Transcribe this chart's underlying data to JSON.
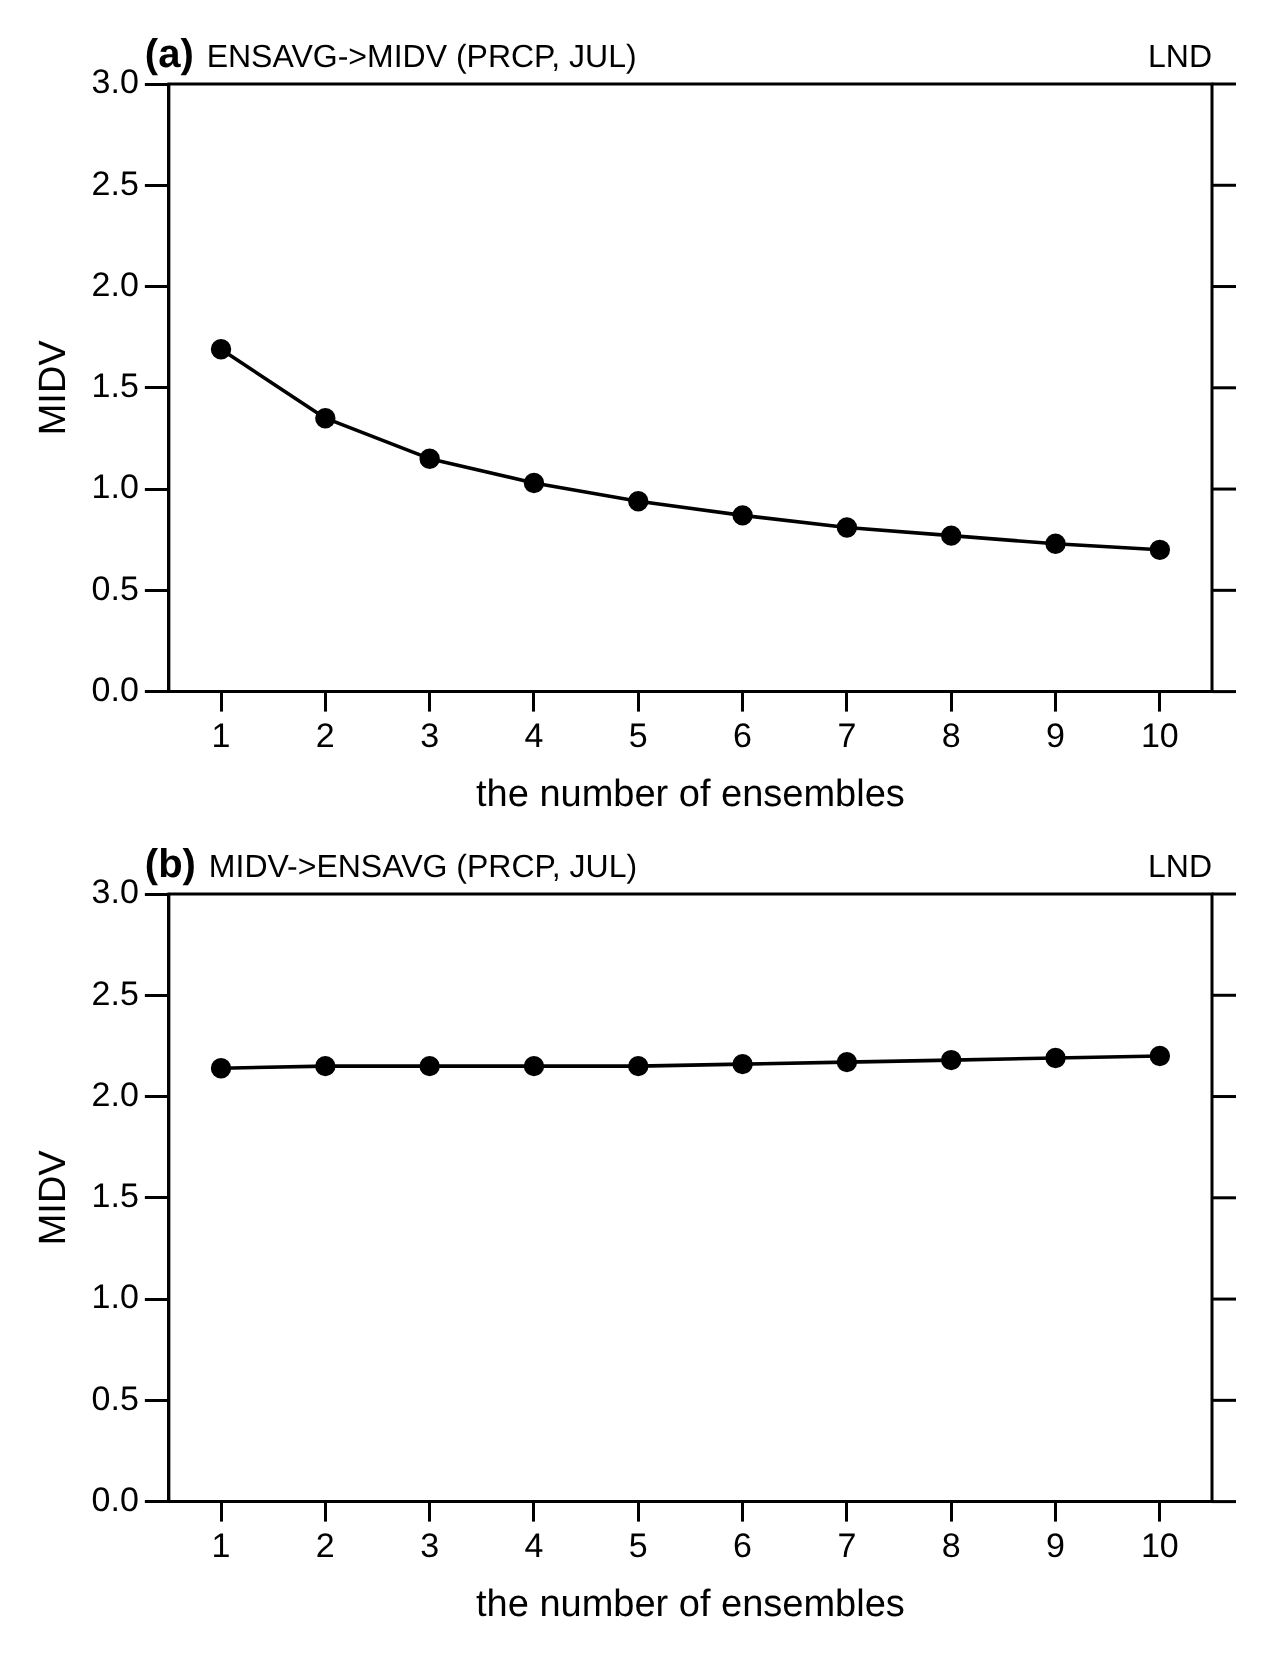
{
  "chart_data": [
    {
      "type": "line",
      "title": "(a) ENSAVG->MIDV (PRCP, JUL)",
      "annotations": [
        "LND"
      ],
      "xlabel": "the number of ensembles",
      "ylabel": "MIDV",
      "x": [
        1,
        2,
        3,
        4,
        5,
        6,
        7,
        8,
        9,
        10
      ],
      "series": [
        {
          "color": "#000000",
          "values": [
            1.69,
            1.35,
            1.15,
            1.03,
            0.94,
            0.87,
            0.81,
            0.77,
            0.73,
            0.7
          ]
        }
      ],
      "xlim": [
        0.5,
        10.5
      ],
      "xticks": [
        1,
        2,
        3,
        4,
        5,
        6,
        7,
        8,
        9,
        10
      ],
      "ylim": [
        0,
        3
      ],
      "yticks": [
        {
          "value": 0,
          "label": "0.0"
        },
        {
          "value": 0.5,
          "label": "0.5"
        },
        {
          "value": 1,
          "label": "1.0"
        },
        {
          "value": 1.5,
          "label": "1.5"
        },
        {
          "value": 2,
          "label": "2.0"
        },
        {
          "value": 2.5,
          "label": "2.5"
        },
        {
          "value": 3,
          "label": "3.0"
        }
      ],
      "grid": false,
      "legend": false,
      "marker": "circle",
      "line_style": "solid"
    },
    {
      "type": "line",
      "title": "(b) MIDV->ENSAVG (PRCP, JUL)",
      "annotations": [
        "LND"
      ],
      "xlabel": "the number of ensembles",
      "ylabel": "MIDV",
      "x": [
        1,
        2,
        3,
        4,
        5,
        6,
        7,
        8,
        9,
        10
      ],
      "series": [
        {
          "color": "#000000",
          "values": [
            2.14,
            2.15,
            2.15,
            2.15,
            2.15,
            2.16,
            2.17,
            2.18,
            2.19,
            2.2
          ]
        }
      ],
      "xlim": [
        0.5,
        10.5
      ],
      "xticks": [
        1,
        2,
        3,
        4,
        5,
        6,
        7,
        8,
        9,
        10
      ],
      "ylim": [
        0,
        3
      ],
      "yticks": [
        {
          "value": 0,
          "label": "0.0"
        },
        {
          "value": 0.5,
          "label": "0.5"
        },
        {
          "value": 1,
          "label": "1.0"
        },
        {
          "value": 1.5,
          "label": "1.5"
        },
        {
          "value": 2,
          "label": "2.0"
        },
        {
          "value": 2.5,
          "label": "2.5"
        },
        {
          "value": 3,
          "label": "3.0"
        }
      ],
      "grid": false,
      "legend": false,
      "marker": "circle",
      "line_style": "solid"
    }
  ]
}
